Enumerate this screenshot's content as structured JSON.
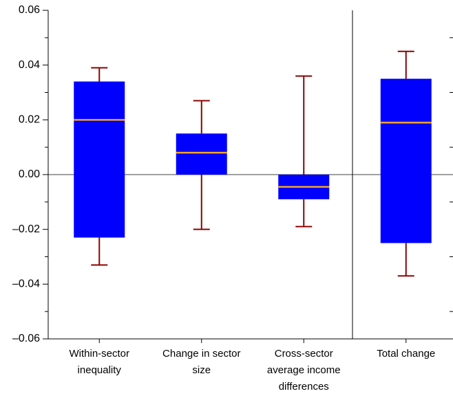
{
  "chart_data": {
    "type": "box",
    "categories": [
      "Within-sector inequality",
      "Change in sector size",
      "Cross-sector average income differences",
      "Total change"
    ],
    "whisker_high": [
      0.039,
      0.027,
      0.036,
      0.045
    ],
    "q3": [
      0.034,
      0.015,
      0.0,
      0.035
    ],
    "median": [
      0.02,
      0.008,
      -0.0045,
      0.019
    ],
    "q1": [
      -0.023,
      0.0,
      -0.009,
      -0.025
    ],
    "whisker_low": [
      -0.033,
      -0.02,
      -0.019,
      -0.037
    ],
    "box_color": "#0000ff",
    "whisker_color": "#8b0000",
    "median_color": "#f5a623",
    "ylim": [
      -0.06,
      0.06
    ],
    "yticks": [
      {
        "value": -0.06,
        "label": "–0.06"
      },
      {
        "value": -0.04,
        "label": "–0.04"
      },
      {
        "value": -0.02,
        "label": "–0.02"
      },
      {
        "value": 0,
        "label": "0.00"
      },
      0.02,
      0.04,
      0.06
    ],
    "minor_yticks": [
      -0.05,
      -0.03,
      -0.01,
      0.01,
      0.03,
      0.05
    ]
  }
}
